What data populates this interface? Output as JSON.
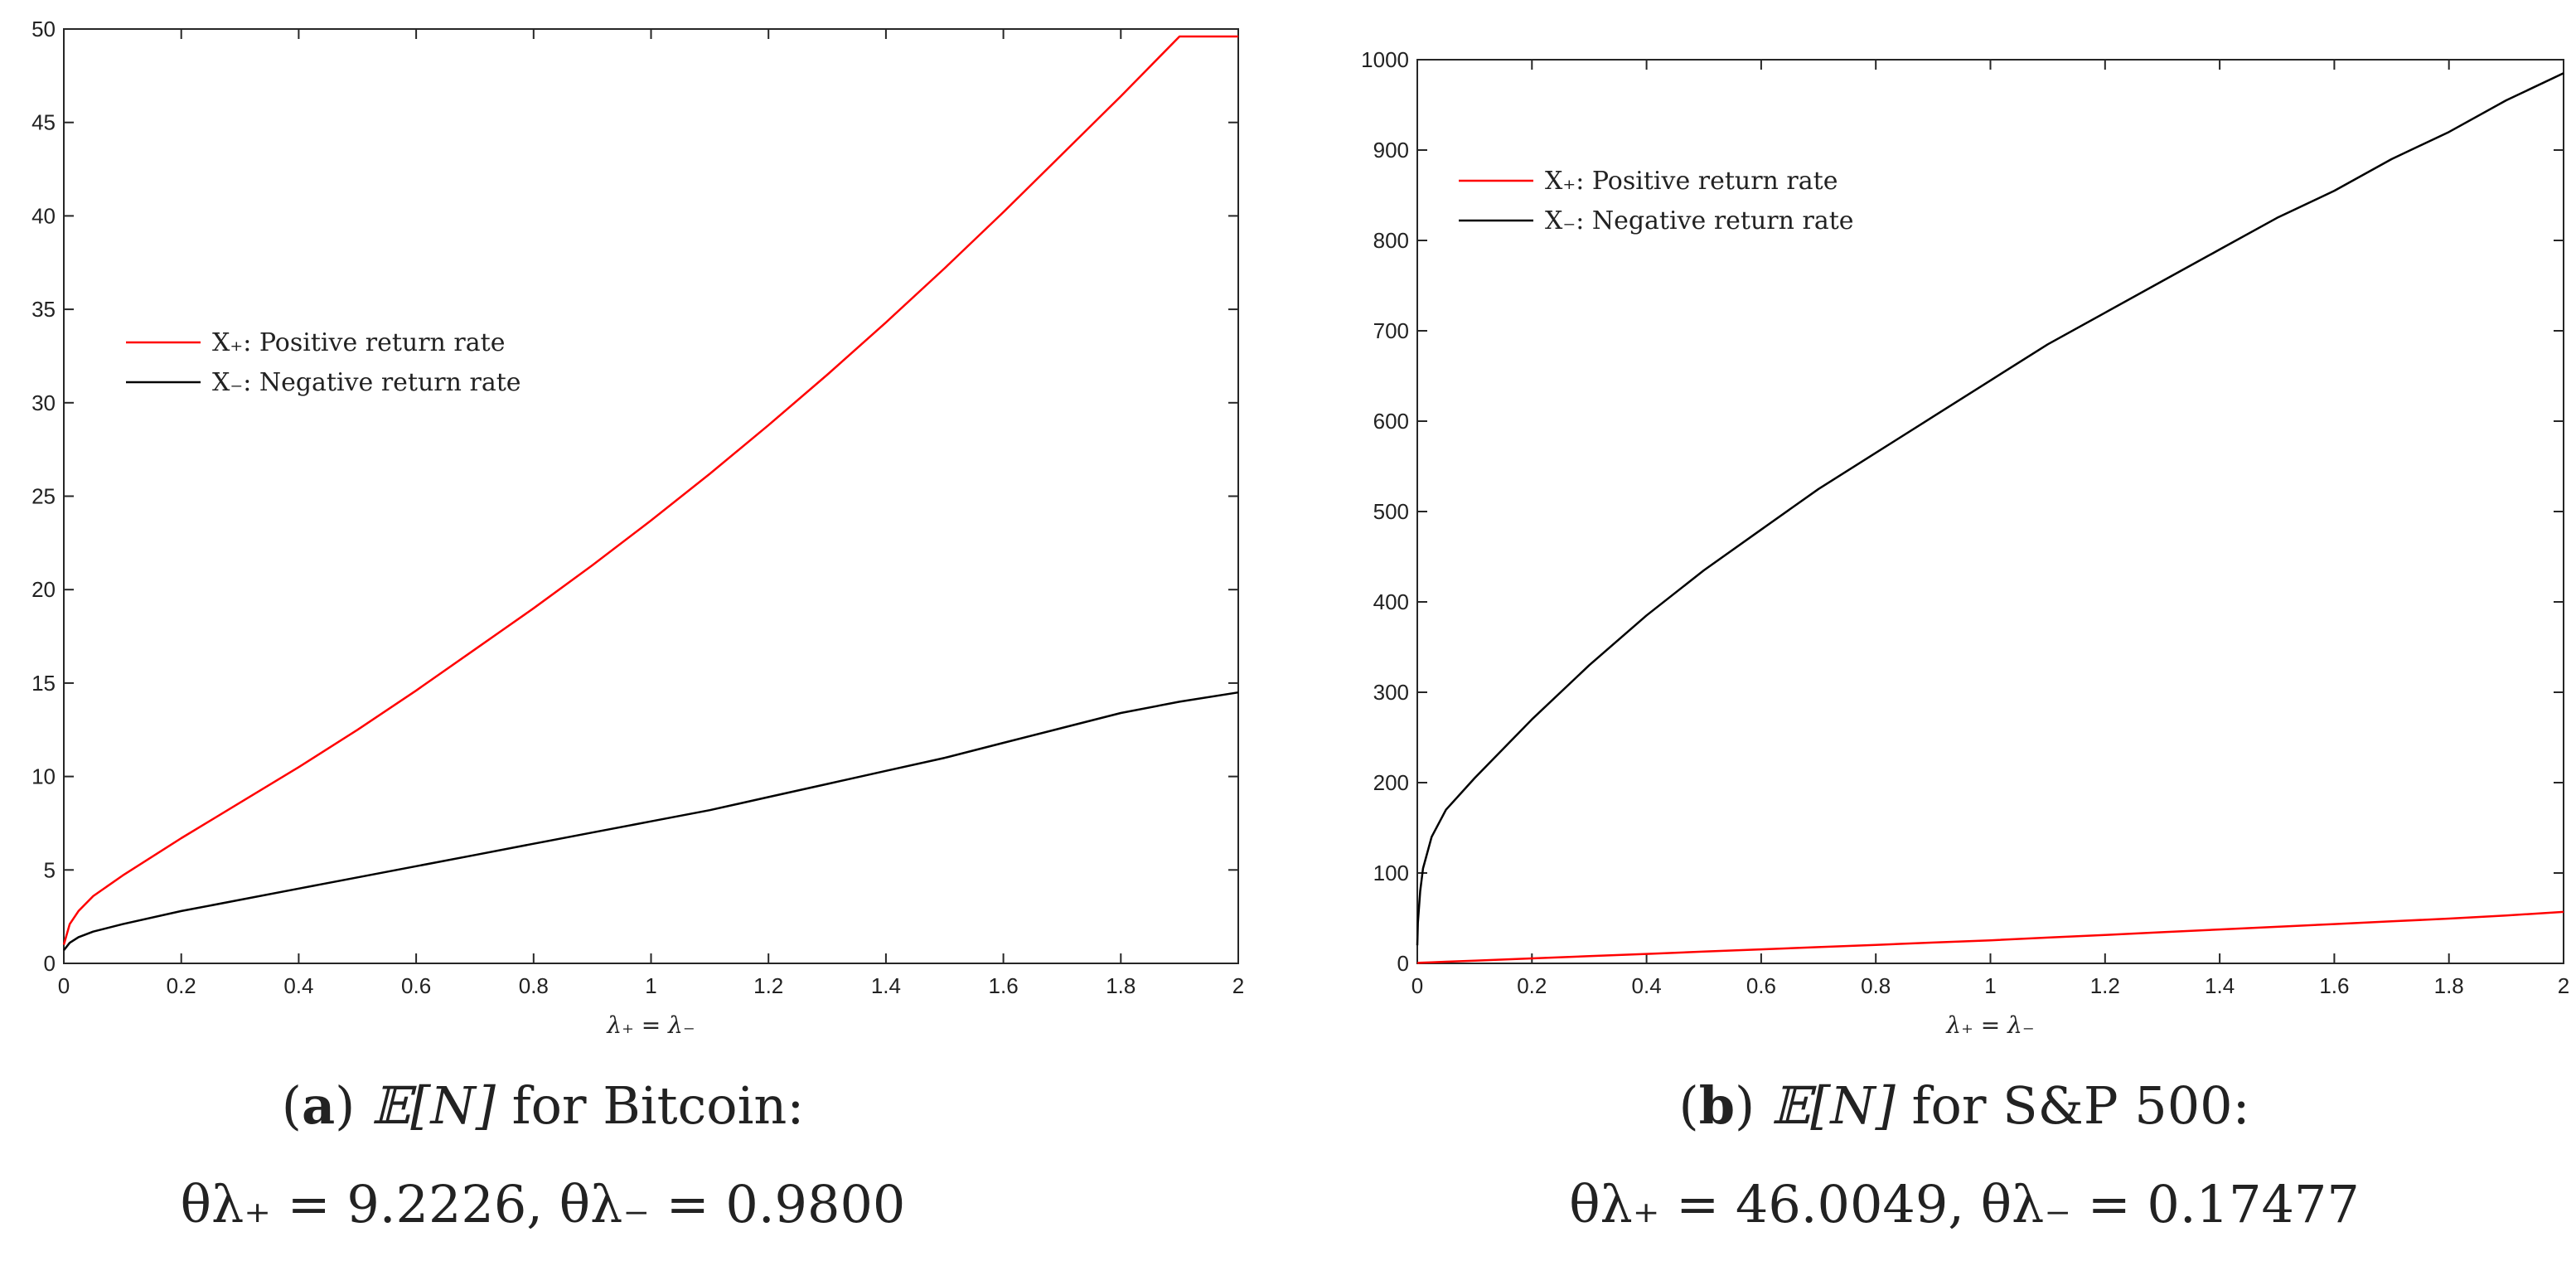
{
  "chart_data": [
    {
      "type": "line",
      "panel_label": "a",
      "xlabel": "λ₊ = λ₋",
      "ylabel": "",
      "xlim": [
        0,
        2
      ],
      "ylim": [
        0,
        50
      ],
      "xticks": [
        "0",
        "0.2",
        "0.4",
        "0.6",
        "0.8",
        "1",
        "1.2",
        "1.4",
        "1.6",
        "1.8",
        "2"
      ],
      "yticks": [
        "0",
        "5",
        "10",
        "15",
        "20",
        "25",
        "30",
        "35",
        "40",
        "45",
        "50"
      ],
      "grid": false,
      "legend_position": "upper-left",
      "x": [
        0,
        0.01,
        0.025,
        0.05,
        0.1,
        0.2,
        0.3,
        0.4,
        0.5,
        0.6,
        0.7,
        0.8,
        0.9,
        1.0,
        1.1,
        1.2,
        1.3,
        1.4,
        1.5,
        1.6,
        1.7,
        1.8,
        1.9,
        2.0
      ],
      "series": [
        {
          "name": "X₊: Positive return rate",
          "color": "#ff0000",
          "values": [
            1.0,
            2.1,
            2.8,
            3.6,
            4.7,
            6.7,
            8.6,
            10.5,
            12.5,
            14.6,
            16.8,
            19.0,
            21.3,
            23.7,
            26.2,
            28.8,
            31.5,
            34.3,
            37.2,
            40.2,
            43.3,
            46.4,
            49.6,
            49.6
          ]
        },
        {
          "name": "X₋: Negative return rate",
          "color": "#000000",
          "values": [
            0.7,
            1.1,
            1.4,
            1.7,
            2.1,
            2.8,
            3.4,
            4.0,
            4.6,
            5.2,
            5.8,
            6.4,
            7.0,
            7.6,
            8.2,
            8.9,
            9.6,
            10.3,
            11.0,
            11.8,
            12.6,
            13.4,
            14.0,
            14.5
          ]
        }
      ]
    },
    {
      "type": "line",
      "panel_label": "b",
      "xlabel": "λ₊ = λ₋",
      "ylabel": "",
      "xlim": [
        0,
        2
      ],
      "ylim": [
        0,
        1000
      ],
      "xticks": [
        "0",
        "0.2",
        "0.4",
        "0.6",
        "0.8",
        "1",
        "1.2",
        "1.4",
        "1.6",
        "1.8",
        "2"
      ],
      "yticks": [
        "0",
        "100",
        "200",
        "300",
        "400",
        "500",
        "600",
        "700",
        "800",
        "900",
        "1000"
      ],
      "grid": false,
      "legend_position": "upper-left",
      "x": [
        0,
        0.001,
        0.005,
        0.01,
        0.025,
        0.05,
        0.1,
        0.2,
        0.3,
        0.4,
        0.5,
        0.6,
        0.7,
        0.8,
        0.9,
        1.0,
        1.1,
        1.2,
        1.3,
        1.4,
        1.5,
        1.6,
        1.7,
        1.8,
        1.9,
        2.0
      ],
      "series": [
        {
          "name": "X₊: Positive return rate",
          "color": "#ff0000",
          "values": [
            0.4,
            0.5,
            0.6,
            0.8,
            1.2,
            1.8,
            3.0,
            5.5,
            8.0,
            10.5,
            13.0,
            15.5,
            18.0,
            20.5,
            23.0,
            25.5,
            28.5,
            31.5,
            34.5,
            37.5,
            40.5,
            43.5,
            46.5,
            49.5,
            53.0,
            57.0
          ]
        },
        {
          "name": "X₋: Negative return rate",
          "color": "#000000",
          "values": [
            20,
            45,
            80,
            105,
            140,
            170,
            205,
            270,
            330,
            385,
            435,
            480,
            525,
            565,
            605,
            645,
            685,
            720,
            755,
            790,
            825,
            855,
            890,
            920,
            955,
            985
          ]
        }
      ]
    }
  ],
  "captions": [
    {
      "label": "a",
      "title_pre": "𝔼[N]",
      "title_post": " for Bitcoin:",
      "line2_pre": "θλ₊ = 9.2226, θλ₋ = 0.9800"
    },
    {
      "label": "b",
      "title_pre": "𝔼[N]",
      "title_post": " for S&P 500:",
      "line2_pre": "θλ₊ = 46.0049, θλ₋ = 0.17477"
    }
  ]
}
